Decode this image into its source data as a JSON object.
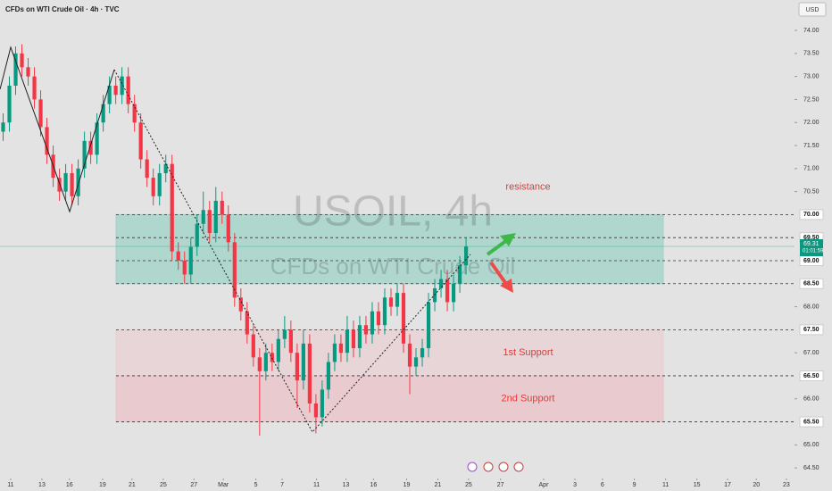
{
  "chart_data": {
    "type": "candlestick",
    "title": "CFDs on WTI Crude Oil · 4h · TVC",
    "currency": "USD",
    "watermark": "USOIL, 4h",
    "watermark_subtitle": "CFDs on WTI Crude Oil",
    "up_color": "#089981",
    "down_color": "#f23645",
    "xlim": [
      0,
      127
    ],
    "ylim": [
      64.27,
      74.66
    ],
    "xticks": [
      {
        "value": 1.7,
        "label": "11"
      },
      {
        "value": 6.7,
        "label": "13"
      },
      {
        "value": 11.1,
        "label": "16"
      },
      {
        "value": 16.4,
        "label": "19"
      },
      {
        "value": 21.1,
        "label": "21"
      },
      {
        "value": 26.1,
        "label": "25"
      },
      {
        "value": 31,
        "label": "27"
      },
      {
        "value": 35.7,
        "label": "Mar"
      },
      {
        "value": 40.9,
        "label": "5"
      },
      {
        "value": 45.1,
        "label": "7"
      },
      {
        "value": 50.6,
        "label": "11"
      },
      {
        "value": 55.3,
        "label": "13"
      },
      {
        "value": 59.7,
        "label": "16"
      },
      {
        "value": 65,
        "label": "19"
      },
      {
        "value": 70,
        "label": "21"
      },
      {
        "value": 74.9,
        "label": "25"
      },
      {
        "value": 80,
        "label": "27"
      },
      {
        "value": 86.9,
        "label": "Apr"
      },
      {
        "value": 91.9,
        "label": "3"
      },
      {
        "value": 96.3,
        "label": "6"
      },
      {
        "value": 101.4,
        "label": "9"
      },
      {
        "value": 106.4,
        "label": "11"
      },
      {
        "value": 111.4,
        "label": "15"
      },
      {
        "value": 116.3,
        "label": "17"
      },
      {
        "value": 120.9,
        "label": "20"
      },
      {
        "value": 125.7,
        "label": "23"
      }
    ],
    "yticks": [
      {
        "value": 74,
        "label": "74.00"
      },
      {
        "value": 73.5,
        "label": "73.50"
      },
      {
        "value": 73,
        "label": "73.00"
      },
      {
        "value": 72.5,
        "label": "72.50"
      },
      {
        "value": 72,
        "label": "72.00"
      },
      {
        "value": 71.5,
        "label": "71.50"
      },
      {
        "value": 71,
        "label": "71.00"
      },
      {
        "value": 70.5,
        "label": "70.50"
      },
      {
        "value": 68,
        "label": "68.00"
      },
      {
        "value": 67,
        "label": "67.00"
      },
      {
        "value": 66,
        "label": "66.00"
      },
      {
        "value": 65,
        "label": "65.00"
      },
      {
        "value": 64.5,
        "label": "64.50"
      }
    ],
    "levels": [
      {
        "value": 70,
        "label": "70.00"
      },
      {
        "value": 69.5,
        "label": "69.50"
      },
      {
        "value": 69,
        "label": "69.00"
      },
      {
        "value": 68.5,
        "label": "68.50"
      },
      {
        "value": 67.5,
        "label": "67.50"
      },
      {
        "value": 66.5,
        "label": "66.50"
      },
      {
        "value": 65.5,
        "label": "65.50"
      }
    ],
    "zones": [
      {
        "name": "resistance",
        "low": 68.5,
        "high": 70,
        "color": "#9fd3c7",
        "label_color": "#e53935",
        "label_at": 70.6
      },
      {
        "name": "1st Support",
        "low": 66.5,
        "high": 67.5,
        "color": "#e8d0d3",
        "label_color": "#e53935",
        "label_at": 67
      },
      {
        "name": "2nd Support",
        "low": 65.5,
        "high": 66.5,
        "color": "#ebc3c8",
        "label_color": "#e53935",
        "label_at": 66
      }
    ],
    "last_price": 69.31,
    "countdown": "01:01:59",
    "open": [
      71.8,
      72.0,
      72.8,
      73.5,
      73.2,
      73.0,
      72.5,
      71.9,
      71.3,
      70.8,
      70.5,
      70.9,
      70.4,
      71.0,
      71.6,
      71.3,
      72.0,
      72.4,
      72.8,
      72.6,
      73.0,
      72.4,
      72.0,
      71.2,
      70.8,
      70.4,
      70.9,
      71.1,
      69.2,
      69.0,
      68.7,
      69.3,
      69.8,
      70.1,
      69.6,
      70.3,
      70.0,
      69.4,
      68.2,
      67.9,
      67.4,
      66.9,
      66.6,
      67.0,
      66.8,
      67.3,
      67.5,
      67.0,
      66.4,
      67.2,
      65.9,
      65.6,
      66.2,
      66.8,
      67.2,
      67.0,
      67.5,
      67.1,
      67.6,
      67.4,
      67.9,
      67.6,
      68.2,
      68.0,
      68.3,
      67.2,
      66.7,
      66.9,
      67.1,
      68.1,
      68.4,
      68.6,
      68.1,
      68.5,
      68.9
    ],
    "high": [
      72.2,
      73.0,
      73.65,
      73.7,
      73.4,
      73.2,
      72.7,
      72.1,
      71.5,
      71.0,
      71.1,
      71.1,
      71.2,
      71.8,
      71.8,
      72.2,
      72.6,
      73.0,
      73.0,
      73.2,
      73.2,
      72.6,
      72.2,
      71.4,
      71.0,
      71.1,
      71.3,
      71.3,
      69.4,
      69.2,
      69.5,
      70.0,
      70.5,
      70.3,
      70.6,
      70.5,
      70.2,
      69.6,
      68.4,
      68.1,
      67.6,
      67.1,
      67.2,
      67.2,
      67.5,
      67.8,
      67.7,
      67.2,
      67.5,
      67.4,
      66.1,
      66.4,
      67.0,
      67.4,
      67.4,
      67.8,
      67.7,
      67.8,
      67.8,
      68.1,
      68.1,
      68.4,
      68.4,
      68.5,
      68.5,
      67.4,
      67.1,
      67.3,
      68.3,
      68.6,
      68.8,
      68.8,
      68.7,
      69.1,
      69.5
    ],
    "low": [
      71.6,
      71.8,
      72.6,
      73.0,
      72.8,
      72.3,
      71.7,
      71.1,
      70.6,
      70.3,
      70.3,
      70.2,
      70.2,
      70.8,
      71.1,
      71.1,
      71.8,
      72.2,
      72.4,
      72.4,
      72.2,
      71.8,
      71.0,
      70.6,
      70.2,
      70.2,
      70.7,
      69.0,
      68.8,
      68.5,
      68.5,
      69.1,
      69.6,
      69.4,
      69.4,
      69.8,
      69.2,
      68.0,
      67.7,
      67.2,
      66.7,
      65.2,
      66.4,
      66.6,
      66.6,
      67.1,
      66.8,
      65.8,
      66.2,
      65.7,
      65.25,
      65.4,
      66.0,
      66.6,
      66.8,
      66.8,
      66.9,
      66.9,
      67.2,
      67.2,
      67.4,
      67.4,
      67.8,
      67.8,
      67.0,
      66.1,
      66.5,
      66.7,
      66.9,
      67.9,
      68.2,
      67.9,
      67.9,
      68.3,
      68.7
    ],
    "close": [
      72.0,
      72.8,
      73.5,
      73.2,
      73.0,
      72.5,
      71.9,
      71.3,
      70.8,
      70.5,
      70.9,
      70.4,
      71.0,
      71.6,
      71.3,
      72.0,
      72.4,
      72.8,
      72.6,
      73.0,
      72.4,
      72.0,
      71.2,
      70.8,
      70.4,
      70.9,
      71.1,
      69.2,
      69.0,
      68.7,
      69.3,
      69.8,
      70.1,
      69.6,
      70.3,
      70.0,
      69.4,
      68.2,
      67.9,
      67.4,
      66.9,
      66.6,
      67.0,
      66.8,
      67.3,
      67.5,
      67.0,
      66.4,
      67.2,
      65.9,
      65.6,
      66.2,
      66.8,
      67.2,
      67.0,
      67.5,
      67.1,
      67.6,
      67.4,
      67.9,
      67.6,
      68.2,
      68.0,
      68.3,
      67.2,
      66.7,
      66.9,
      67.1,
      68.1,
      68.4,
      68.6,
      68.1,
      68.5,
      68.9,
      69.31
    ]
  }
}
